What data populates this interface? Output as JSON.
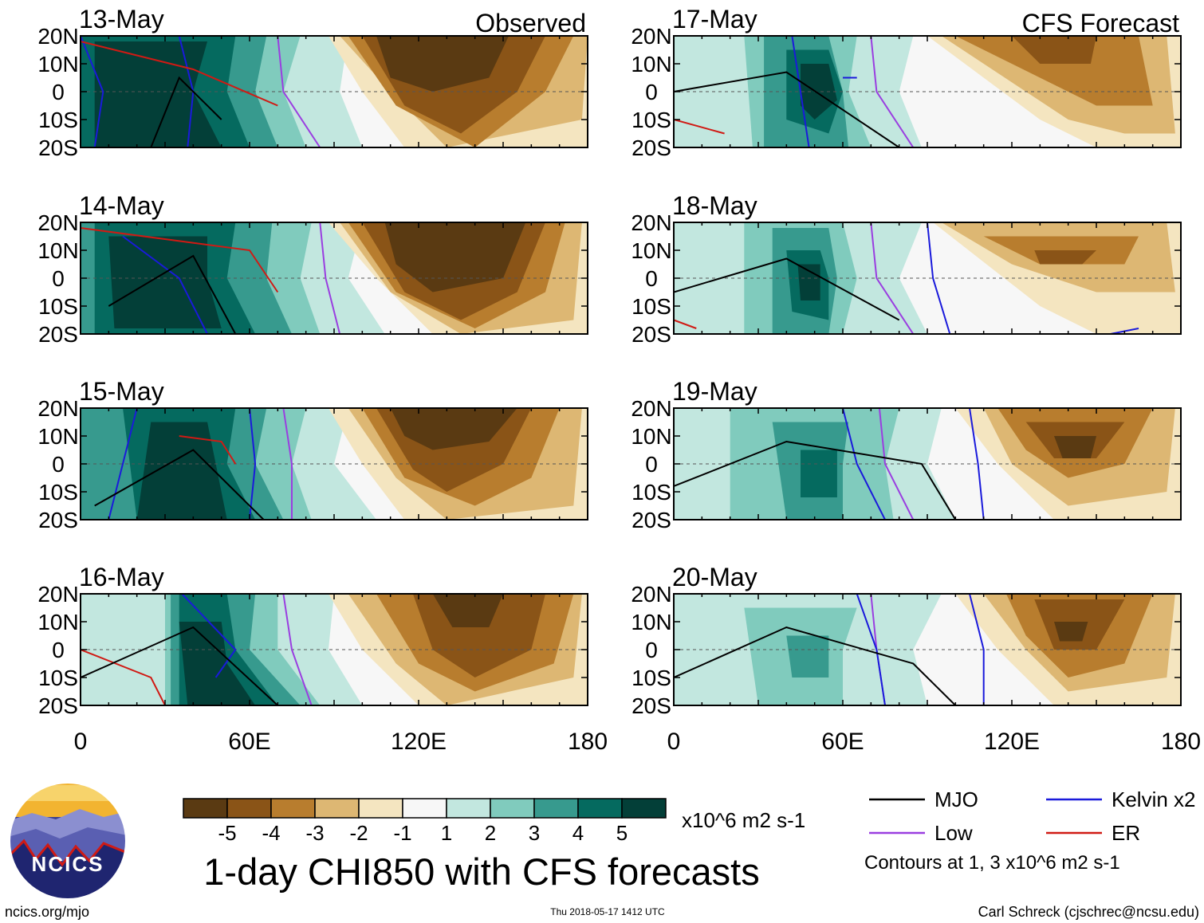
{
  "chart_data": {
    "type": "heatmap",
    "title": "1-day CHI850 with CFS forecasts",
    "column_labels": [
      "Observed",
      "CFS Forecast"
    ],
    "panels": [
      {
        "date": "13-May",
        "column": "Observed"
      },
      {
        "date": "14-May",
        "column": "Observed"
      },
      {
        "date": "15-May",
        "column": "Observed"
      },
      {
        "date": "16-May",
        "column": "Observed"
      },
      {
        "date": "17-May",
        "column": "CFS Forecast"
      },
      {
        "date": "18-May",
        "column": "CFS Forecast"
      },
      {
        "date": "19-May",
        "column": "CFS Forecast"
      },
      {
        "date": "20-May",
        "column": "CFS Forecast"
      }
    ],
    "x_ticks": [
      "0",
      "60E",
      "120E",
      "180"
    ],
    "x_values": [
      0,
      60,
      120,
      180
    ],
    "xlim": [
      0,
      180
    ],
    "y_ticks": [
      "20N",
      "10N",
      "0",
      "10S",
      "20S"
    ],
    "y_values": [
      20,
      10,
      0,
      -10,
      -20
    ],
    "ylim": [
      -20,
      20
    ],
    "colorbar": {
      "ticks": [
        "-5",
        "-4",
        "-3",
        "-2",
        "-1",
        "1",
        "2",
        "3",
        "4",
        "5"
      ],
      "colors": [
        "#5a3a12",
        "#8a5417",
        "#b87d2e",
        "#ddb773",
        "#f4e5c0",
        "#f7f7f7",
        "#c2e7df",
        "#80cbbd",
        "#379a8e",
        "#056a5f",
        "#033f38"
      ],
      "units": "x10^6 m2 s-1"
    },
    "legend": [
      {
        "label": "MJO",
        "color": "#000000"
      },
      {
        "label": "Kelvin x2",
        "color": "#1a1adb"
      },
      {
        "label": "Low",
        "color": "#9a3ee0"
      },
      {
        "label": "ER",
        "color": "#d01a14"
      }
    ],
    "contours_note": "Contours at 1, 3 x10^6 m2 s-1"
  },
  "footer": {
    "logo_text": "NCICS",
    "site": "ncics.org/mjo",
    "timestamp": "Thu 2018-05-17 1412 UTC",
    "author": "Carl Schreck (cjschrec@ncsu.edu)"
  }
}
